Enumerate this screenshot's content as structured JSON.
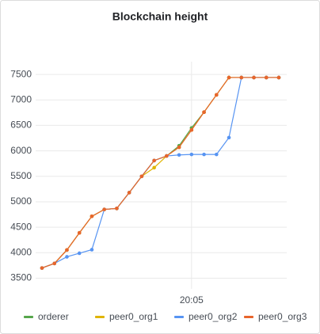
{
  "chart_data": {
    "type": "line",
    "title": "Blockchain height",
    "categories": [
      null,
      null,
      null,
      null,
      null,
      null,
      null,
      null,
      null,
      null,
      null,
      null,
      "20:05",
      null,
      null,
      null,
      null,
      null,
      null,
      null
    ],
    "series": [
      {
        "name": "orderer",
        "color": "#56a64b",
        "values": [
          3700,
          3790,
          4054,
          4390,
          4715,
          4850,
          4870,
          5180,
          5500,
          5810,
          5900,
          6100,
          6450,
          6760,
          7100,
          7440,
          7440,
          7440,
          7440,
          7440
        ]
      },
      {
        "name": "peer0_org1",
        "color": "#e0b400",
        "values": [
          3700,
          3790,
          4054,
          4390,
          4715,
          4850,
          4870,
          5180,
          5500,
          5670,
          5900,
          6070,
          6410,
          6760,
          7100,
          7440,
          7440,
          7440,
          7440,
          7440
        ]
      },
      {
        "name": "peer0_org2",
        "color": "#5794f2",
        "values": [
          3700,
          3790,
          3920,
          3990,
          4060,
          4850,
          4870,
          5180,
          5500,
          5810,
          5900,
          5920,
          5930,
          5930,
          5930,
          6260,
          7440,
          7440,
          7440,
          7440
        ]
      },
      {
        "name": "peer0_org3",
        "color": "#e8652c",
        "values": [
          3700,
          3790,
          4054,
          4390,
          4715,
          4850,
          4870,
          5180,
          5500,
          5810,
          5900,
          6070,
          6410,
          6760,
          7100,
          7440,
          7440,
          7440,
          7440,
          7440
        ]
      }
    ],
    "ylim": [
      3290,
      7750
    ],
    "yticks": [
      3500,
      4000,
      4500,
      5000,
      5500,
      6000,
      6500,
      7000,
      7500
    ],
    "grid": true
  }
}
